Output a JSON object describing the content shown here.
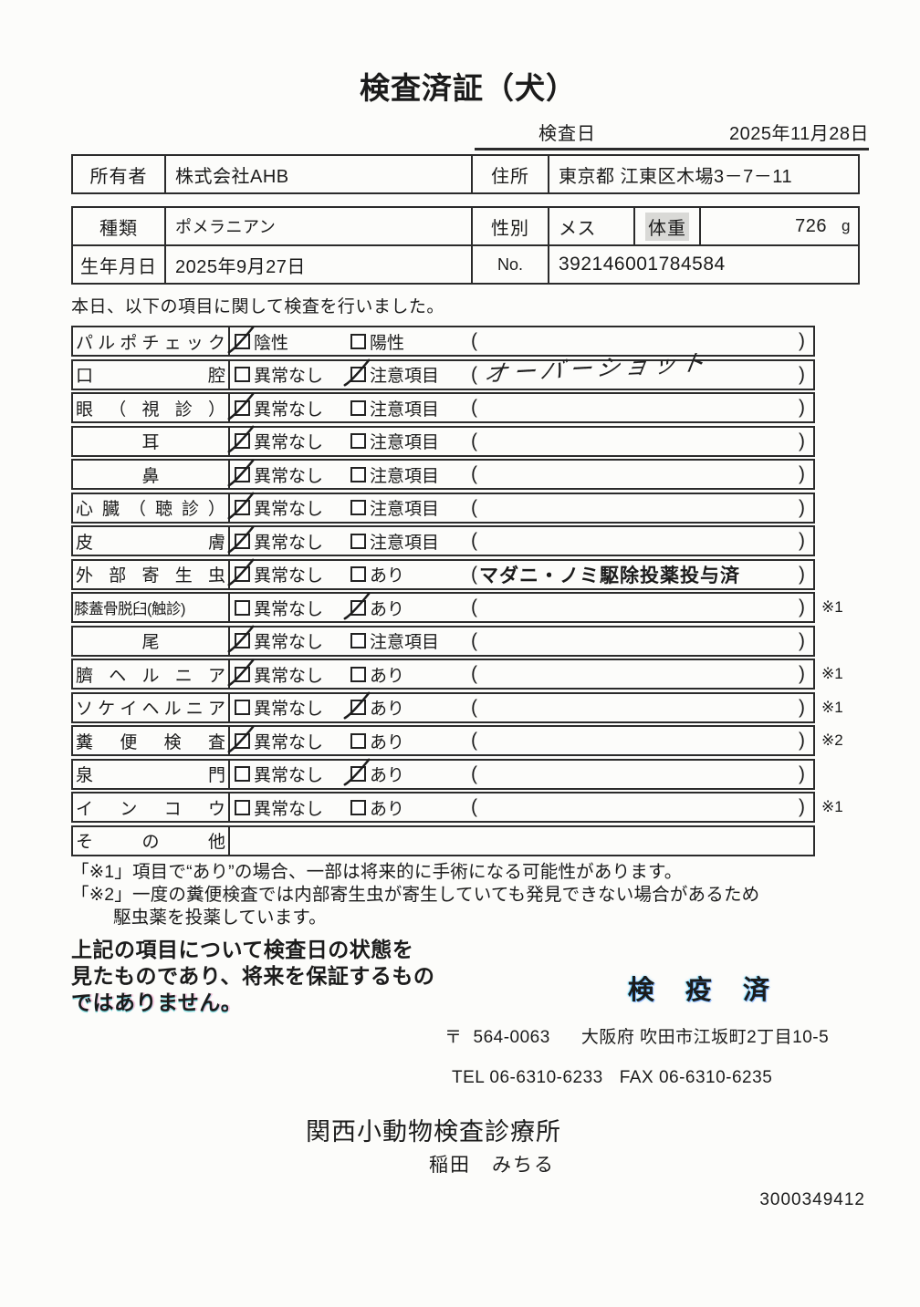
{
  "page_title": "検査済証（犬）",
  "header": {
    "inspection_date_label": "検査日",
    "inspection_date": "2025年11月28日",
    "owner_label": "所有者",
    "owner": "株式会社AHB",
    "address_label": "住所",
    "address": "東京都 江東区木場3－7－11",
    "breed_label": "種類",
    "breed": "ポメラニアン",
    "sex_label": "性別",
    "sex": "メス",
    "weight_label": "体重",
    "weight_value": "726",
    "weight_unit": "g",
    "birth_label": "生年月日",
    "birth_date": "2025年9月27日",
    "no_label": "No.",
    "no_value": "392146001784584"
  },
  "intro": "本日、以下の項目に関して検査を行いました。",
  "checklist": {
    "rows": [
      {
        "label": "パルポチェック",
        "options": [
          {
            "text": "陰性",
            "checked": true
          },
          {
            "text": "陽性",
            "checked": false
          }
        ],
        "paren": "",
        "paren_style": "",
        "note": ""
      },
      {
        "label": "口腔",
        "options": [
          {
            "text": "異常なし",
            "checked": false
          },
          {
            "text": "注意項目",
            "checked": true
          }
        ],
        "paren": "オーバーショット",
        "paren_style": "hand",
        "note": ""
      },
      {
        "label": "眼（視診）",
        "options": [
          {
            "text": "異常なし",
            "checked": true
          },
          {
            "text": "注意項目",
            "checked": false
          }
        ],
        "paren": "",
        "paren_style": "",
        "note": ""
      },
      {
        "label": "耳",
        "options": [
          {
            "text": "異常なし",
            "checked": true
          },
          {
            "text": "注意項目",
            "checked": false
          }
        ],
        "paren": "",
        "paren_style": "",
        "note": ""
      },
      {
        "label": "鼻",
        "options": [
          {
            "text": "異常なし",
            "checked": true
          },
          {
            "text": "注意項目",
            "checked": false
          }
        ],
        "paren": "",
        "paren_style": "",
        "note": ""
      },
      {
        "label": "心臓（聴診）",
        "options": [
          {
            "text": "異常なし",
            "checked": true
          },
          {
            "text": "注意項目",
            "checked": false
          }
        ],
        "paren": "",
        "paren_style": "",
        "note": ""
      },
      {
        "label": "皮膚",
        "options": [
          {
            "text": "異常なし",
            "checked": true
          },
          {
            "text": "注意項目",
            "checked": false
          }
        ],
        "paren": "",
        "paren_style": "",
        "note": ""
      },
      {
        "label": "外部寄生虫",
        "options": [
          {
            "text": "異常なし",
            "checked": true
          },
          {
            "text": "あり",
            "checked": false
          }
        ],
        "paren": "マダニ・ノミ駆除投薬投与済",
        "paren_style": "printed",
        "note": ""
      },
      {
        "label": "膝蓋骨脱臼(触診)",
        "compact": true,
        "options": [
          {
            "text": "異常なし",
            "checked": false
          },
          {
            "text": "あり",
            "checked": true
          }
        ],
        "paren": "",
        "paren_style": "",
        "note": "※1"
      },
      {
        "label": "尾",
        "options": [
          {
            "text": "異常なし",
            "checked": true
          },
          {
            "text": "注意項目",
            "checked": false
          }
        ],
        "paren": "",
        "paren_style": "",
        "note": ""
      },
      {
        "label": "臍ヘルニア",
        "options": [
          {
            "text": "異常なし",
            "checked": true
          },
          {
            "text": "あり",
            "checked": false
          }
        ],
        "paren": "",
        "paren_style": "",
        "note": "※1"
      },
      {
        "label": "ソケイヘルニア",
        "options": [
          {
            "text": "異常なし",
            "checked": false
          },
          {
            "text": "あり",
            "checked": true
          }
        ],
        "paren": "",
        "paren_style": "",
        "note": "※1"
      },
      {
        "label": "糞便検査",
        "options": [
          {
            "text": "異常なし",
            "checked": true
          },
          {
            "text": "あり",
            "checked": false
          }
        ],
        "paren": "",
        "paren_style": "",
        "note": "※2"
      },
      {
        "label": "泉門",
        "options": [
          {
            "text": "異常なし",
            "checked": false
          },
          {
            "text": "あり",
            "checked": true
          }
        ],
        "paren": "",
        "paren_style": "",
        "note": ""
      },
      {
        "label": "インコウ",
        "options": [
          {
            "text": "異常なし",
            "checked": false
          },
          {
            "text": "あり",
            "checked": false
          }
        ],
        "paren": "",
        "paren_style": "",
        "note": "※1"
      },
      {
        "label": "その他",
        "options": null,
        "paren": "",
        "paren_style": "",
        "note": ""
      }
    ]
  },
  "footnotes": {
    "note1": "「※1」項目で“あり”の場合、一部は将来的に手術になる可能性があります。",
    "note2": "「※2」一度の糞便検査では内部寄生虫が寄生していても発見できない場合があるため",
    "note2_cont": "駆虫薬を投薬しています。"
  },
  "statement": {
    "line1": "上記の項目について検査日の状態を",
    "line2": "見たものであり、将来を保証するもの",
    "line3": "ではありません。"
  },
  "stamp": "検 疫 済",
  "clinic": {
    "postal_mark": "〒",
    "postal_code": "564-0063",
    "address": "大阪府 吹田市江坂町2丁目10-5",
    "tel_label": "TEL",
    "tel": "06-6310-6233",
    "fax_label": "FAX",
    "fax": "06-6310-6235",
    "name": "関西小動物検査診療所",
    "veterinarian": "稲田　みちる",
    "serial": "3000349412"
  },
  "colors": {
    "ink": "#1b1b1b",
    "border": "#2b2b2b",
    "stamp_fringe": "#19b8e8"
  }
}
